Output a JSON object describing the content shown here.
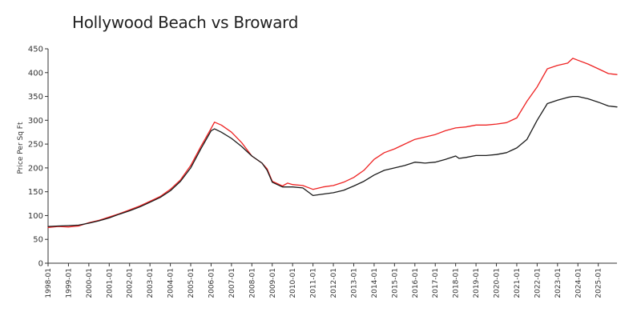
{
  "chart_data": {
    "type": "line",
    "title": "Hollywood Beach vs Broward",
    "xlabel": "",
    "ylabel": "Price Per Sq Ft",
    "ylim": [
      0,
      450
    ],
    "xlim": [
      "1998-01",
      "2025-12"
    ],
    "y_ticks": [
      "0",
      "50",
      "100",
      "150",
      "200",
      "250",
      "300",
      "350",
      "400",
      "450"
    ],
    "x_ticks": [
      "1998-01",
      "1999-01",
      "2000-01",
      "2001-01",
      "2002-01",
      "2003-01",
      "2004-01",
      "2005-01",
      "2006-01",
      "2007-01",
      "2008-01",
      "2009-01",
      "2010-01",
      "2011-01",
      "2012-01",
      "2013-01",
      "2014-01",
      "2015-01",
      "2016-01",
      "2017-01",
      "2018-01",
      "2019-01",
      "2020-01",
      "2021-01",
      "2022-01",
      "2023-01",
      "2024-01",
      "2025-01"
    ],
    "grid": false,
    "legend": "none",
    "series": [
      {
        "name": "Hollywood Beach",
        "color": "#ee2222",
        "points": [
          [
            "1998-01",
            75
          ],
          [
            "1998-07",
            77
          ],
          [
            "1999-01",
            76
          ],
          [
            "1999-07",
            78
          ],
          [
            "2000-01",
            85
          ],
          [
            "2000-07",
            90
          ],
          [
            "2001-01",
            97
          ],
          [
            "2001-07",
            104
          ],
          [
            "2002-01",
            112
          ],
          [
            "2002-07",
            120
          ],
          [
            "2003-01",
            130
          ],
          [
            "2003-07",
            140
          ],
          [
            "2004-01",
            155
          ],
          [
            "2004-07",
            175
          ],
          [
            "2005-01",
            205
          ],
          [
            "2005-07",
            245
          ],
          [
            "2006-01",
            283
          ],
          [
            "2006-03",
            296
          ],
          [
            "2006-07",
            290
          ],
          [
            "2007-01",
            275
          ],
          [
            "2007-07",
            253
          ],
          [
            "2008-01",
            225
          ],
          [
            "2008-07",
            210
          ],
          [
            "2008-10",
            198
          ],
          [
            "2009-01",
            172
          ],
          [
            "2009-07",
            162
          ],
          [
            "2009-10",
            168
          ],
          [
            "2010-01",
            165
          ],
          [
            "2010-07",
            163
          ],
          [
            "2011-01",
            155
          ],
          [
            "2011-07",
            160
          ],
          [
            "2012-01",
            163
          ],
          [
            "2012-07",
            170
          ],
          [
            "2013-01",
            180
          ],
          [
            "2013-07",
            195
          ],
          [
            "2014-01",
            218
          ],
          [
            "2014-07",
            232
          ],
          [
            "2015-01",
            240
          ],
          [
            "2015-07",
            250
          ],
          [
            "2016-01",
            260
          ],
          [
            "2016-07",
            265
          ],
          [
            "2017-01",
            270
          ],
          [
            "2017-07",
            278
          ],
          [
            "2018-01",
            284
          ],
          [
            "2018-07",
            286
          ],
          [
            "2019-01",
            290
          ],
          [
            "2019-07",
            290
          ],
          [
            "2020-01",
            292
          ],
          [
            "2020-07",
            295
          ],
          [
            "2021-01",
            305
          ],
          [
            "2021-07",
            340
          ],
          [
            "2022-01",
            370
          ],
          [
            "2022-07",
            408
          ],
          [
            "2023-01",
            415
          ],
          [
            "2023-07",
            420
          ],
          [
            "2023-10",
            430
          ],
          [
            "2024-01",
            426
          ],
          [
            "2024-07",
            418
          ],
          [
            "2025-01",
            408
          ],
          [
            "2025-07",
            398
          ],
          [
            "2025-12",
            396
          ]
        ]
      },
      {
        "name": "Broward",
        "color": "#1a1a1a",
        "points": [
          [
            "1998-01",
            77
          ],
          [
            "1998-07",
            78
          ],
          [
            "1999-01",
            79
          ],
          [
            "1999-07",
            80
          ],
          [
            "2000-01",
            84
          ],
          [
            "2000-07",
            89
          ],
          [
            "2001-01",
            95
          ],
          [
            "2001-07",
            103
          ],
          [
            "2002-01",
            110
          ],
          [
            "2002-07",
            118
          ],
          [
            "2003-01",
            128
          ],
          [
            "2003-07",
            138
          ],
          [
            "2004-01",
            152
          ],
          [
            "2004-07",
            172
          ],
          [
            "2005-01",
            200
          ],
          [
            "2005-07",
            240
          ],
          [
            "2006-01",
            278
          ],
          [
            "2006-03",
            282
          ],
          [
            "2006-07",
            275
          ],
          [
            "2007-01",
            262
          ],
          [
            "2007-07",
            245
          ],
          [
            "2008-01",
            225
          ],
          [
            "2008-07",
            210
          ],
          [
            "2008-10",
            195
          ],
          [
            "2009-01",
            170
          ],
          [
            "2009-07",
            160
          ],
          [
            "2009-10",
            160
          ],
          [
            "2010-01",
            160
          ],
          [
            "2010-07",
            158
          ],
          [
            "2011-01",
            142
          ],
          [
            "2011-07",
            145
          ],
          [
            "2012-01",
            148
          ],
          [
            "2012-07",
            153
          ],
          [
            "2013-01",
            162
          ],
          [
            "2013-07",
            172
          ],
          [
            "2014-01",
            185
          ],
          [
            "2014-07",
            195
          ],
          [
            "2015-01",
            200
          ],
          [
            "2015-07",
            205
          ],
          [
            "2016-01",
            212
          ],
          [
            "2016-07",
            210
          ],
          [
            "2017-01",
            212
          ],
          [
            "2017-07",
            218
          ],
          [
            "2018-01",
            225
          ],
          [
            "2018-03",
            220
          ],
          [
            "2018-07",
            222
          ],
          [
            "2019-01",
            226
          ],
          [
            "2019-07",
            226
          ],
          [
            "2020-01",
            228
          ],
          [
            "2020-07",
            232
          ],
          [
            "2021-01",
            242
          ],
          [
            "2021-07",
            260
          ],
          [
            "2022-01",
            300
          ],
          [
            "2022-07",
            335
          ],
          [
            "2023-01",
            342
          ],
          [
            "2023-07",
            348
          ],
          [
            "2023-10",
            350
          ],
          [
            "2024-01",
            350
          ],
          [
            "2024-07",
            345
          ],
          [
            "2025-01",
            338
          ],
          [
            "2025-07",
            330
          ],
          [
            "2025-12",
            328
          ]
        ]
      }
    ]
  }
}
